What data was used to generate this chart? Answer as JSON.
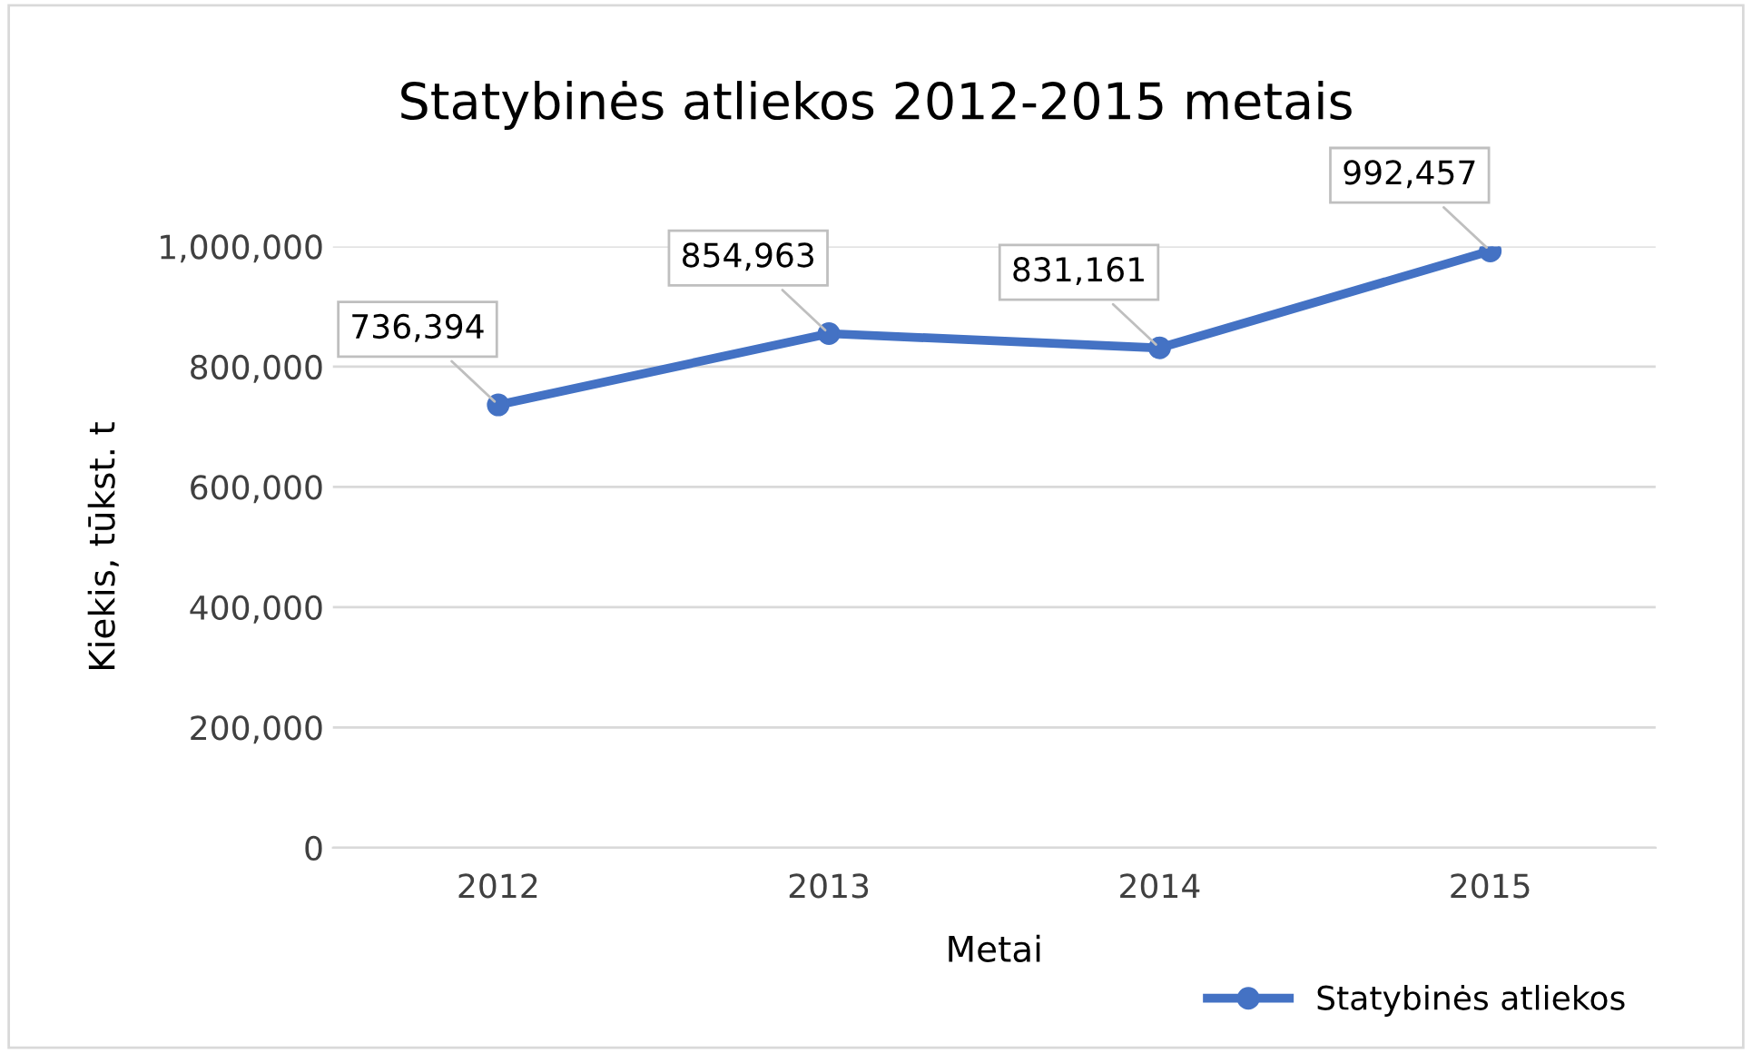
{
  "chart_data": {
    "type": "line",
    "title": "Statybinės atliekos 2012-2015 metais",
    "xlabel": "Metai",
    "ylabel": "Kiekis, tūkst. t",
    "categories": [
      "2012",
      "2013",
      "2014",
      "2015"
    ],
    "series": [
      {
        "name": "Statybinės atliekos",
        "color": "#4472c4",
        "values": [
          736394,
          854963,
          831161,
          992457
        ],
        "value_labels": [
          "736,394",
          "854,963",
          "831,161",
          "992,457"
        ]
      }
    ],
    "ylim": [
      0,
      1000000
    ],
    "yticks": [
      0,
      {
        "value": 200000,
        "label": "200,000"
      },
      {
        "value": 400000,
        "label": "400,000"
      },
      {
        "value": 600000,
        "label": "600,000"
      },
      {
        "value": 800000,
        "label": "800,000"
      },
      {
        "value": 1000000,
        "label": "1,000,000"
      }
    ],
    "grid": "y",
    "legend": "bottom right",
    "marker": "circle",
    "line_style": "solid"
  }
}
